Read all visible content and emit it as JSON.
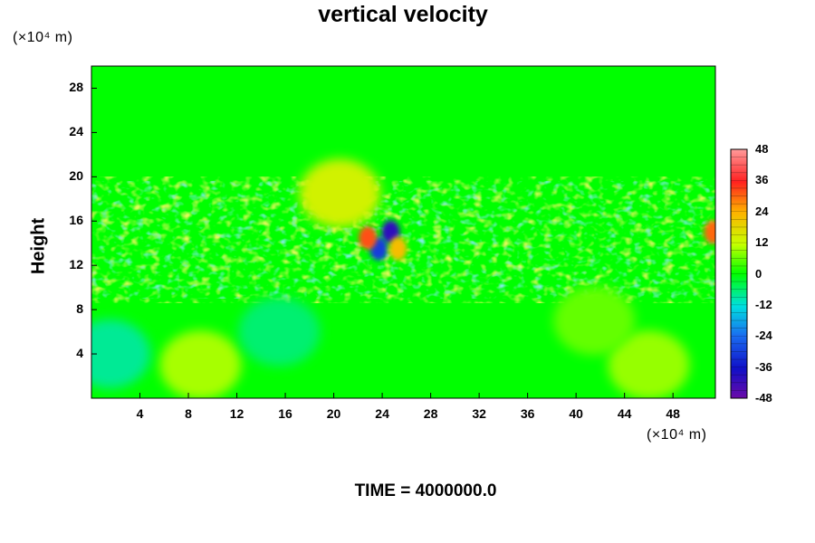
{
  "chart_data": {
    "type": "heatmap",
    "title": "vertical velocity",
    "ylabel": "Height",
    "y_unit": "(×10⁴ m)",
    "x_unit": "(×10⁴ m)",
    "xlim": [
      0,
      51.5
    ],
    "ylim": [
      0,
      30
    ],
    "x_ticks": [
      "4",
      "8",
      "12",
      "16",
      "20",
      "24",
      "28",
      "32",
      "36",
      "40",
      "44",
      "48"
    ],
    "y_ticks": [
      "4",
      "8",
      "12",
      "16",
      "20",
      "24",
      "28"
    ],
    "colorbar": {
      "min": -48,
      "max": 48,
      "ticks": [
        "48",
        "36",
        "24",
        "12",
        "0",
        "-12",
        "-24",
        "-36",
        "-48"
      ]
    },
    "features": [
      {
        "x": 9,
        "y": 3,
        "value": 10
      },
      {
        "x": 46,
        "y": 3,
        "value": 9
      },
      {
        "x": 1.5,
        "y": 4,
        "value": -8
      },
      {
        "x": 15.5,
        "y": 6,
        "value": -6
      },
      {
        "x": 41.5,
        "y": 7,
        "value": 6
      },
      {
        "x": 24.7,
        "y": 15,
        "value": -40
      },
      {
        "x": 23.7,
        "y": 13.5,
        "value": -30
      },
      {
        "x": 22.8,
        "y": 14.5,
        "value": 32
      },
      {
        "x": 25.3,
        "y": 13.5,
        "value": 22
      },
      {
        "x": 20.5,
        "y": 18.5,
        "value": 14
      },
      {
        "x": 51.3,
        "y": 15,
        "value": 30
      }
    ],
    "footer": "TIME = 4000000.0"
  }
}
